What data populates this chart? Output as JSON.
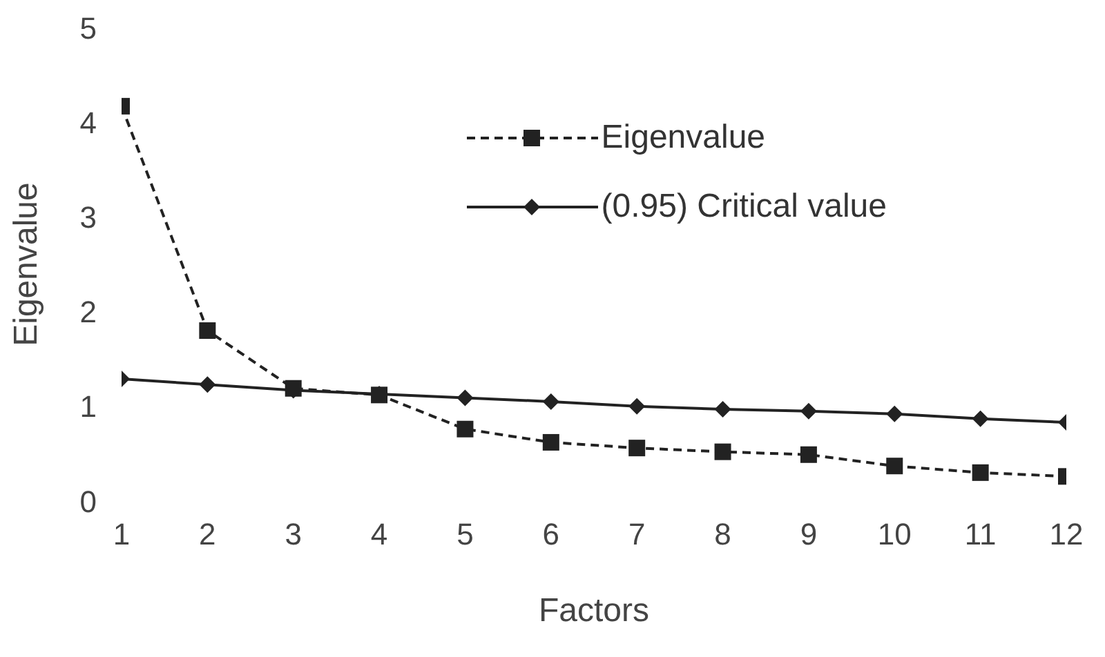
{
  "chart_data": {
    "type": "line",
    "xlabel": "Factors",
    "ylabel": "Eigenvalue",
    "x": [
      1,
      2,
      3,
      4,
      5,
      6,
      7,
      8,
      9,
      10,
      11,
      12
    ],
    "xlim": [
      1,
      12
    ],
    "xticks": [
      1,
      2,
      3,
      4,
      5,
      6,
      7,
      8,
      9,
      10,
      11,
      12
    ],
    "ylim": [
      0,
      5
    ],
    "yticks": [
      0,
      1,
      2,
      3,
      4,
      5
    ],
    "grid": false,
    "legend": "top right",
    "series": [
      {
        "name": "Eigenvalue",
        "color": "#222222",
        "marker": "square",
        "line_style": "dashed",
        "values": [
          4.17,
          1.8,
          1.19,
          1.12,
          0.76,
          0.62,
          0.56,
          0.52,
          0.49,
          0.37,
          0.3,
          0.26
        ]
      },
      {
        "name": "(0.95) Critical value",
        "color": "#222222",
        "marker": "diamond",
        "line_style": "solid",
        "values": [
          1.29,
          1.23,
          1.17,
          1.13,
          1.09,
          1.05,
          1.0,
          0.97,
          0.95,
          0.92,
          0.87,
          0.83
        ]
      }
    ]
  }
}
